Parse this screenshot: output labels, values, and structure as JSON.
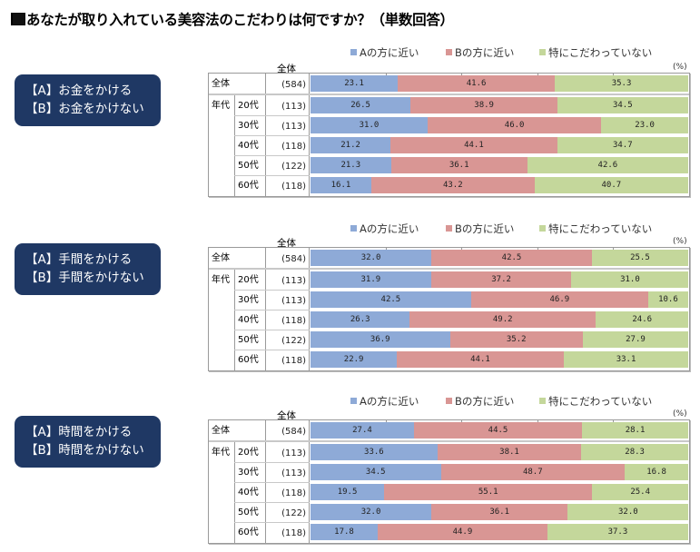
{
  "title": "あなたが取り入れている美容法のこだわりは何ですか？（単数回答）",
  "colors": {
    "A": "#8eaad7",
    "B": "#d99694",
    "C": "#c4d79b",
    "nav_bg": "#1f3864"
  },
  "legend": {
    "A": "Aの方に近い",
    "B": "Bの方に近い",
    "C": "特にこだわっていない"
  },
  "unit": "(%)",
  "col_header": "全体",
  "group_label": "年代",
  "sections": [
    {
      "label_a": "【A】お金をかける",
      "label_b": "【B】お金をかけない",
      "rows": [
        {
          "name": "全体",
          "n": "(584)",
          "A": "23.1",
          "B": "41.6",
          "C": "35.3"
        },
        {
          "name": "20代",
          "n": "(113)",
          "A": "26.5",
          "B": "38.9",
          "C": "34.5"
        },
        {
          "name": "30代",
          "n": "(113)",
          "A": "31.0",
          "B": "46.0",
          "C": "23.0"
        },
        {
          "name": "40代",
          "n": "(118)",
          "A": "21.2",
          "B": "44.1",
          "C": "34.7"
        },
        {
          "name": "50代",
          "n": "(122)",
          "A": "21.3",
          "B": "36.1",
          "C": "42.6"
        },
        {
          "name": "60代",
          "n": "(118)",
          "A": "16.1",
          "B": "43.2",
          "C": "40.7"
        }
      ]
    },
    {
      "label_a": "【A】手間をかける",
      "label_b": "【B】手間をかけない",
      "rows": [
        {
          "name": "全体",
          "n": "(584)",
          "A": "32.0",
          "B": "42.5",
          "C": "25.5"
        },
        {
          "name": "20代",
          "n": "(113)",
          "A": "31.9",
          "B": "37.2",
          "C": "31.0"
        },
        {
          "name": "30代",
          "n": "(113)",
          "A": "42.5",
          "B": "46.9",
          "C": "10.6"
        },
        {
          "name": "40代",
          "n": "(118)",
          "A": "26.3",
          "B": "49.2",
          "C": "24.6"
        },
        {
          "name": "50代",
          "n": "(122)",
          "A": "36.9",
          "B": "35.2",
          "C": "27.9"
        },
        {
          "name": "60代",
          "n": "(118)",
          "A": "22.9",
          "B": "44.1",
          "C": "33.1"
        }
      ]
    },
    {
      "label_a": "【A】時間をかける",
      "label_b": "【B】時間をかけない",
      "rows": [
        {
          "name": "全体",
          "n": "(584)",
          "A": "27.4",
          "B": "44.5",
          "C": "28.1"
        },
        {
          "name": "20代",
          "n": "(113)",
          "A": "33.6",
          "B": "38.1",
          "C": "28.3"
        },
        {
          "name": "30代",
          "n": "(113)",
          "A": "34.5",
          "B": "48.7",
          "C": "16.8"
        },
        {
          "name": "40代",
          "n": "(118)",
          "A": "19.5",
          "B": "55.1",
          "C": "25.4"
        },
        {
          "name": "50代",
          "n": "(122)",
          "A": "32.0",
          "B": "36.1",
          "C": "32.0"
        },
        {
          "name": "60代",
          "n": "(118)",
          "A": "17.8",
          "B": "44.9",
          "C": "37.3"
        }
      ]
    }
  ],
  "chart_data": [
    {
      "type": "bar",
      "stacked": true,
      "orientation": "horizontal",
      "title": "【A】お金をかける / 【B】お金をかけない",
      "categories": [
        "全体 (584)",
        "20代 (113)",
        "30代 (113)",
        "40代 (118)",
        "50代 (122)",
        "60代 (118)"
      ],
      "series": [
        {
          "name": "Aの方に近い",
          "values": [
            23.1,
            26.5,
            31.0,
            21.2,
            21.3,
            16.1
          ]
        },
        {
          "name": "Bの方に近い",
          "values": [
            41.6,
            38.9,
            46.0,
            44.1,
            36.1,
            43.2
          ]
        },
        {
          "name": "特にこだわっていない",
          "values": [
            35.3,
            34.5,
            23.0,
            34.7,
            42.6,
            40.7
          ]
        }
      ],
      "xlim": [
        0,
        100
      ],
      "unit": "%",
      "legend": "top"
    },
    {
      "type": "bar",
      "stacked": true,
      "orientation": "horizontal",
      "title": "【A】手間をかける / 【B】手間をかけない",
      "categories": [
        "全体 (584)",
        "20代 (113)",
        "30代 (113)",
        "40代 (118)",
        "50代 (122)",
        "60代 (118)"
      ],
      "series": [
        {
          "name": "Aの方に近い",
          "values": [
            32.0,
            31.9,
            42.5,
            26.3,
            36.9,
            22.9
          ]
        },
        {
          "name": "Bの方に近い",
          "values": [
            42.5,
            37.2,
            46.9,
            49.2,
            35.2,
            44.1
          ]
        },
        {
          "name": "特にこだわっていない",
          "values": [
            25.5,
            31.0,
            10.6,
            24.6,
            27.9,
            33.1
          ]
        }
      ],
      "xlim": [
        0,
        100
      ],
      "unit": "%",
      "legend": "top"
    },
    {
      "type": "bar",
      "stacked": true,
      "orientation": "horizontal",
      "title": "【A】時間をかける / 【B】時間をかけない",
      "categories": [
        "全体 (584)",
        "20代 (113)",
        "30代 (113)",
        "40代 (118)",
        "50代 (122)",
        "60代 (118)"
      ],
      "series": [
        {
          "name": "Aの方に近い",
          "values": [
            27.4,
            33.6,
            34.5,
            19.5,
            32.0,
            17.8
          ]
        },
        {
          "name": "Bの方に近い",
          "values": [
            44.5,
            38.1,
            48.7,
            55.1,
            36.1,
            44.9
          ]
        },
        {
          "name": "特にこだわっていない",
          "values": [
            28.1,
            28.3,
            16.8,
            25.4,
            32.0,
            37.3
          ]
        }
      ],
      "xlim": [
        0,
        100
      ],
      "unit": "%",
      "legend": "top"
    }
  ]
}
